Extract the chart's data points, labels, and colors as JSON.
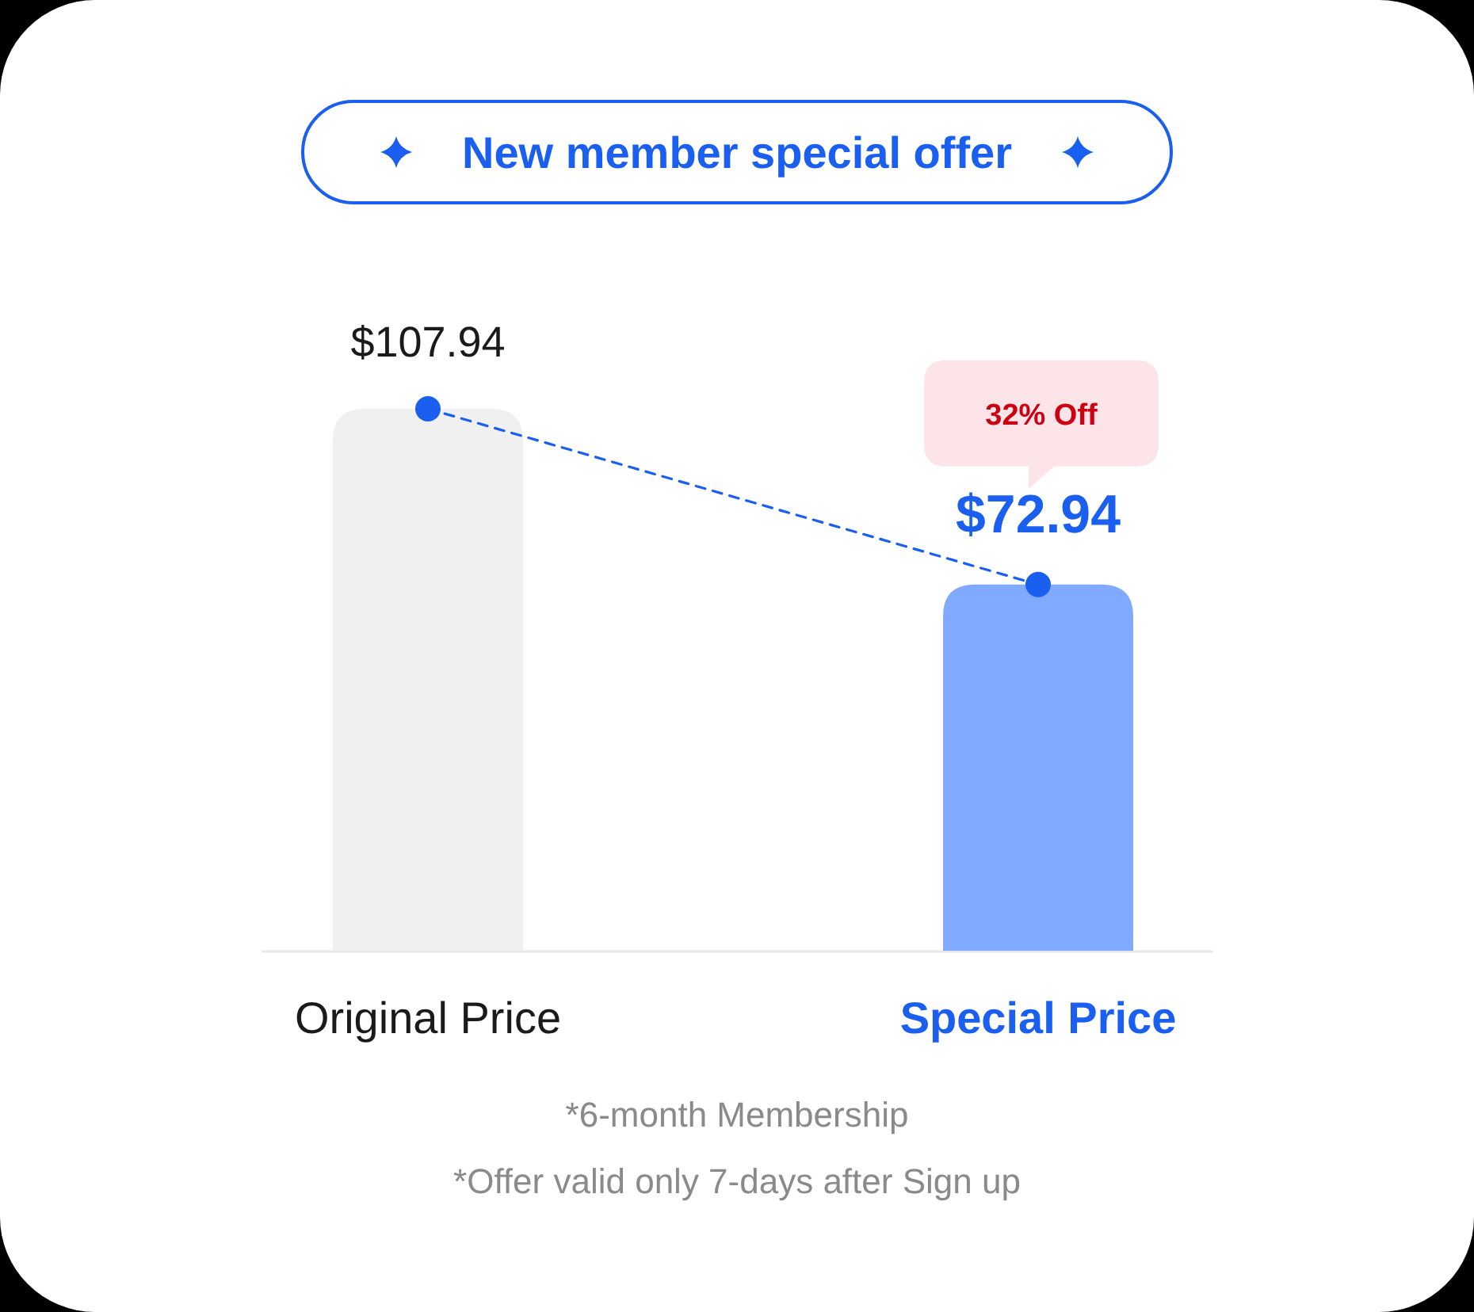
{
  "chart_data": {
    "type": "bar",
    "title": "New member special offer",
    "categories": [
      "Original Price",
      "Special Price"
    ],
    "series": [
      {
        "colors": [
          "#f0f0f0",
          "#80aaff"
        ],
        "values": [
          107.94,
          72.94
        ],
        "value_labels": [
          "$107.94",
          "$72.94"
        ]
      },
      {
        "type": "line",
        "color": "#1a5ff0",
        "values": [
          107.94,
          72.94
        ],
        "line_style": "dashed",
        "marker": "circle"
      }
    ],
    "annotations": [
      "32% Off",
      "*6-month Membership",
      "*Offer valid only 7-days after Sign up"
    ],
    "tick_labels": "x"
  }
}
